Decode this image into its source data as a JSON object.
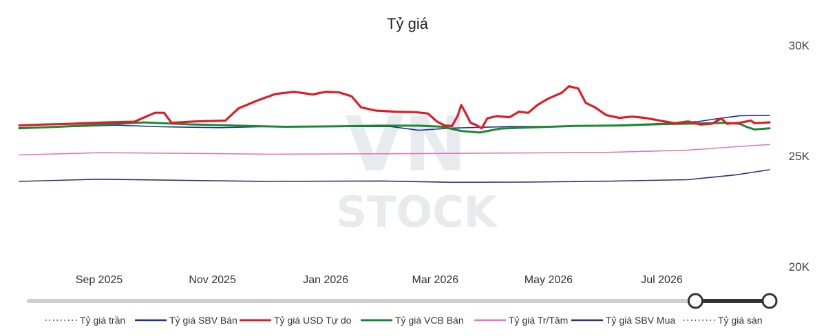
{
  "chart_data": {
    "type": "line",
    "title": "Tỷ giá",
    "xlabel": "",
    "ylabel": "",
    "x_range": [
      "2025-07-20",
      "2026-08-28"
    ],
    "ylim": [
      20000,
      30000
    ],
    "y_ticks": [
      {
        "value": 30000,
        "label": "30K"
      },
      {
        "value": 25000,
        "label": "25K"
      },
      {
        "value": 20000,
        "label": "20K"
      }
    ],
    "x_ticks": [
      {
        "date": "2025-09-01",
        "label": "Sep 2025"
      },
      {
        "date": "2025-11-01",
        "label": "Nov 2025"
      },
      {
        "date": "2026-01-01",
        "label": "Jan 2026"
      },
      {
        "date": "2026-03-01",
        "label": "Mar 2026"
      },
      {
        "date": "2026-05-01",
        "label": "May 2026"
      },
      {
        "date": "2026-07-01",
        "label": "Jul 2026"
      }
    ],
    "grid": false,
    "legend_position": "bottom",
    "series": [
      {
        "name": "Tỷ giá trần",
        "color": "#5a5a7a",
        "style": "dotted",
        "points": []
      },
      {
        "name": "Tỷ giá SBV Bán",
        "color": "#1f2d9c",
        "style": "solid",
        "width": 1.6,
        "points": [
          [
            "2025-07-20",
            26280
          ],
          [
            "2025-08-15",
            26320
          ],
          [
            "2025-09-10",
            26390
          ],
          [
            "2025-10-05",
            26320
          ],
          [
            "2025-11-05",
            26280
          ],
          [
            "2025-12-01",
            26330
          ],
          [
            "2026-01-01",
            26330
          ],
          [
            "2026-02-05",
            26330
          ],
          [
            "2026-02-20",
            26160
          ],
          [
            "2026-03-10",
            26260
          ],
          [
            "2026-04-10",
            26330
          ],
          [
            "2026-05-10",
            26340
          ],
          [
            "2026-06-05",
            26390
          ],
          [
            "2026-07-01",
            26470
          ],
          [
            "2026-07-20",
            26550
          ],
          [
            "2026-08-01",
            26700
          ],
          [
            "2026-08-12",
            26820
          ],
          [
            "2026-08-28",
            26840
          ]
        ]
      },
      {
        "name": "Tỷ giá USD Tự do",
        "color": "#e01b24",
        "style": "solid",
        "width": 3.2,
        "points": [
          [
            "2025-07-20",
            26380
          ],
          [
            "2025-08-01",
            26420
          ],
          [
            "2025-08-15",
            26450
          ],
          [
            "2025-09-05",
            26520
          ],
          [
            "2025-09-20",
            26550
          ],
          [
            "2025-10-01",
            26950
          ],
          [
            "2025-10-06",
            26950
          ],
          [
            "2025-10-10",
            26500
          ],
          [
            "2025-10-22",
            26560
          ],
          [
            "2025-11-08",
            26600
          ],
          [
            "2025-11-15",
            27150
          ],
          [
            "2025-11-25",
            27500
          ],
          [
            "2025-12-05",
            27800
          ],
          [
            "2025-12-15",
            27900
          ],
          [
            "2025-12-25",
            27780
          ],
          [
            "2026-01-01",
            27900
          ],
          [
            "2026-01-08",
            27880
          ],
          [
            "2026-01-15",
            27700
          ],
          [
            "2026-01-20",
            27200
          ],
          [
            "2026-01-28",
            27050
          ],
          [
            "2026-02-08",
            27000
          ],
          [
            "2026-02-18",
            26980
          ],
          [
            "2026-02-25",
            26920
          ],
          [
            "2026-03-02",
            26550
          ],
          [
            "2026-03-06",
            26380
          ],
          [
            "2026-03-10",
            26350
          ],
          [
            "2026-03-13",
            26800
          ],
          [
            "2026-03-15",
            27300
          ],
          [
            "2026-03-17",
            27000
          ],
          [
            "2026-03-20",
            26500
          ],
          [
            "2026-03-23",
            26400
          ],
          [
            "2026-03-26",
            26250
          ],
          [
            "2026-03-29",
            26700
          ],
          [
            "2026-04-03",
            26800
          ],
          [
            "2026-04-10",
            26750
          ],
          [
            "2026-04-15",
            27000
          ],
          [
            "2026-04-20",
            26950
          ],
          [
            "2026-04-25",
            27300
          ],
          [
            "2026-05-01",
            27600
          ],
          [
            "2026-05-08",
            27850
          ],
          [
            "2026-05-12",
            28150
          ],
          [
            "2026-05-17",
            28050
          ],
          [
            "2026-05-21",
            27400
          ],
          [
            "2026-05-26",
            27200
          ],
          [
            "2026-06-01",
            26850
          ],
          [
            "2026-06-08",
            26720
          ],
          [
            "2026-06-15",
            26780
          ],
          [
            "2026-06-22",
            26720
          ],
          [
            "2026-07-01",
            26580
          ],
          [
            "2026-07-08",
            26480
          ],
          [
            "2026-07-15",
            26560
          ],
          [
            "2026-07-22",
            26420
          ],
          [
            "2026-07-28",
            26460
          ],
          [
            "2026-08-02",
            26700
          ],
          [
            "2026-08-05",
            26460
          ],
          [
            "2026-08-12",
            26500
          ],
          [
            "2026-08-18",
            26600
          ],
          [
            "2026-08-20",
            26480
          ],
          [
            "2026-08-24",
            26500
          ],
          [
            "2026-08-28",
            26520
          ]
        ]
      },
      {
        "name": "Tỷ giá VCB Bán",
        "color": "#1a8a2e",
        "style": "solid",
        "width": 3.0,
        "points": [
          [
            "2025-07-20",
            26250
          ],
          [
            "2025-08-10",
            26320
          ],
          [
            "2025-09-05",
            26430
          ],
          [
            "2025-09-25",
            26520
          ],
          [
            "2025-10-20",
            26430
          ],
          [
            "2025-11-15",
            26370
          ],
          [
            "2025-12-10",
            26320
          ],
          [
            "2026-01-05",
            26340
          ],
          [
            "2026-01-30",
            26370
          ],
          [
            "2026-02-20",
            26370
          ],
          [
            "2026-03-05",
            26320
          ],
          [
            "2026-03-15",
            26130
          ],
          [
            "2026-03-25",
            26060
          ],
          [
            "2026-04-05",
            26240
          ],
          [
            "2026-04-25",
            26300
          ],
          [
            "2026-05-15",
            26360
          ],
          [
            "2026-06-10",
            26380
          ],
          [
            "2026-07-01",
            26440
          ],
          [
            "2026-07-20",
            26470
          ],
          [
            "2026-08-05",
            26500
          ],
          [
            "2026-08-12",
            26450
          ],
          [
            "2026-08-16",
            26300
          ],
          [
            "2026-08-20",
            26200
          ],
          [
            "2026-08-28",
            26250
          ]
        ]
      },
      {
        "name": "Tỷ giá Tr/Tâm",
        "color": "#e377c2",
        "style": "solid",
        "width": 1.6,
        "points": [
          [
            "2025-07-20",
            25050
          ],
          [
            "2025-09-01",
            25150
          ],
          [
            "2025-10-15",
            25120
          ],
          [
            "2025-12-01",
            25080
          ],
          [
            "2026-02-01",
            25100
          ],
          [
            "2026-04-01",
            25130
          ],
          [
            "2026-06-01",
            25160
          ],
          [
            "2026-07-15",
            25260
          ],
          [
            "2026-08-10",
            25420
          ],
          [
            "2026-08-28",
            25520
          ]
        ]
      },
      {
        "name": "Tỷ giá SBV Mua",
        "color": "#3d2a7d",
        "style": "solid",
        "width": 1.6,
        "points": [
          [
            "2025-07-20",
            23850
          ],
          [
            "2025-09-01",
            23950
          ],
          [
            "2025-10-15",
            23900
          ],
          [
            "2025-12-01",
            23850
          ],
          [
            "2026-02-01",
            23870
          ],
          [
            "2026-03-10",
            23810
          ],
          [
            "2026-04-20",
            23820
          ],
          [
            "2026-06-01",
            23860
          ],
          [
            "2026-07-15",
            23930
          ],
          [
            "2026-08-10",
            24150
          ],
          [
            "2026-08-28",
            24380
          ]
        ]
      },
      {
        "name": "Tỷ giá sàn",
        "color": "#5a5a7a",
        "style": "dotted",
        "points": []
      }
    ],
    "annotations": []
  },
  "range_slider": {
    "start_fraction": 0.9,
    "end_fraction": 1.0
  },
  "watermark": {
    "line1": "VN",
    "line2": "STOCK"
  }
}
